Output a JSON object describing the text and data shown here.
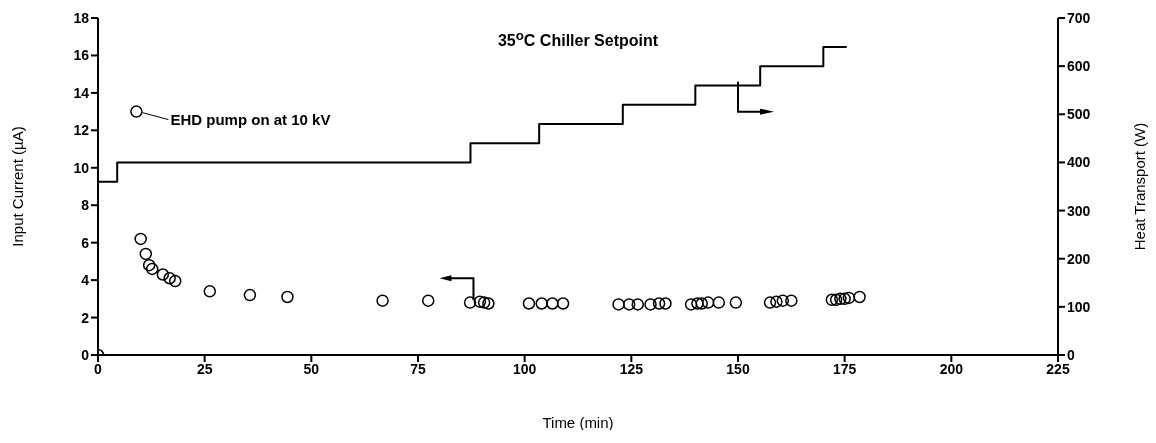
{
  "chart_data": {
    "type": "scatter",
    "title": "35$^{o}$C Chiller Setpoint",
    "xlabel": "Time (min)",
    "ylabel": "Input Current (µA)",
    "y2label": "Heat Transport (W)",
    "annotations": [
      {
        "text": "EHD pump on at 10 kV",
        "x": 9,
        "y": 13
      }
    ],
    "xlim": [
      0,
      225
    ],
    "xticks": [
      0,
      25,
      50,
      75,
      100,
      125,
      150,
      175,
      200,
      225
    ],
    "ylim": [
      0,
      18
    ],
    "yticks": [
      0,
      2,
      4,
      6,
      8,
      10,
      12,
      14,
      16,
      18
    ],
    "y2lim": [
      0,
      700
    ],
    "y2ticks": [
      0,
      100,
      200,
      300,
      400,
      500,
      600,
      700
    ],
    "grid": false,
    "legend": false,
    "line_style": "solid",
    "series": [
      {
        "marker": "circle",
        "color": "#000000",
        "x": [
          0,
          9,
          10,
          11.2,
          12,
          12.7,
          15.2,
          16.8,
          18.1,
          26.2,
          35.6,
          44.4,
          66.7,
          77.4,
          87.2,
          89.5,
          90.5,
          91.5,
          101,
          104,
          106.5,
          109,
          122,
          124.5,
          126.5,
          129.5,
          131.5,
          133,
          139,
          140.5,
          141.5,
          143,
          145.5,
          149.5,
          157.5,
          159,
          160.5,
          162.5,
          172,
          173,
          174,
          175,
          176,
          178.5
        ],
        "values": [
          0,
          13,
          6.2,
          5.4,
          4.8,
          4.6,
          4.3,
          4.1,
          3.95,
          3.4,
          3.2,
          3.1,
          2.9,
          2.9,
          2.8,
          2.85,
          2.8,
          2.75,
          2.75,
          2.75,
          2.75,
          2.75,
          2.7,
          2.7,
          2.7,
          2.7,
          2.75,
          2.75,
          2.7,
          2.75,
          2.75,
          2.8,
          2.8,
          2.8,
          2.8,
          2.85,
          2.9,
          2.9,
          2.95,
          2.95,
          3.0,
          3.0,
          3.05,
          3.1
        ]
      },
      {
        "type": "step",
        "axis": "y2",
        "color": "#000000",
        "x": [
          0,
          4.5,
          87.3,
          103.4,
          123,
          140,
          155.2,
          170,
          175.5
        ],
        "values": [
          360,
          400,
          440,
          480,
          520,
          560,
          600,
          640,
          640
        ]
      }
    ]
  }
}
